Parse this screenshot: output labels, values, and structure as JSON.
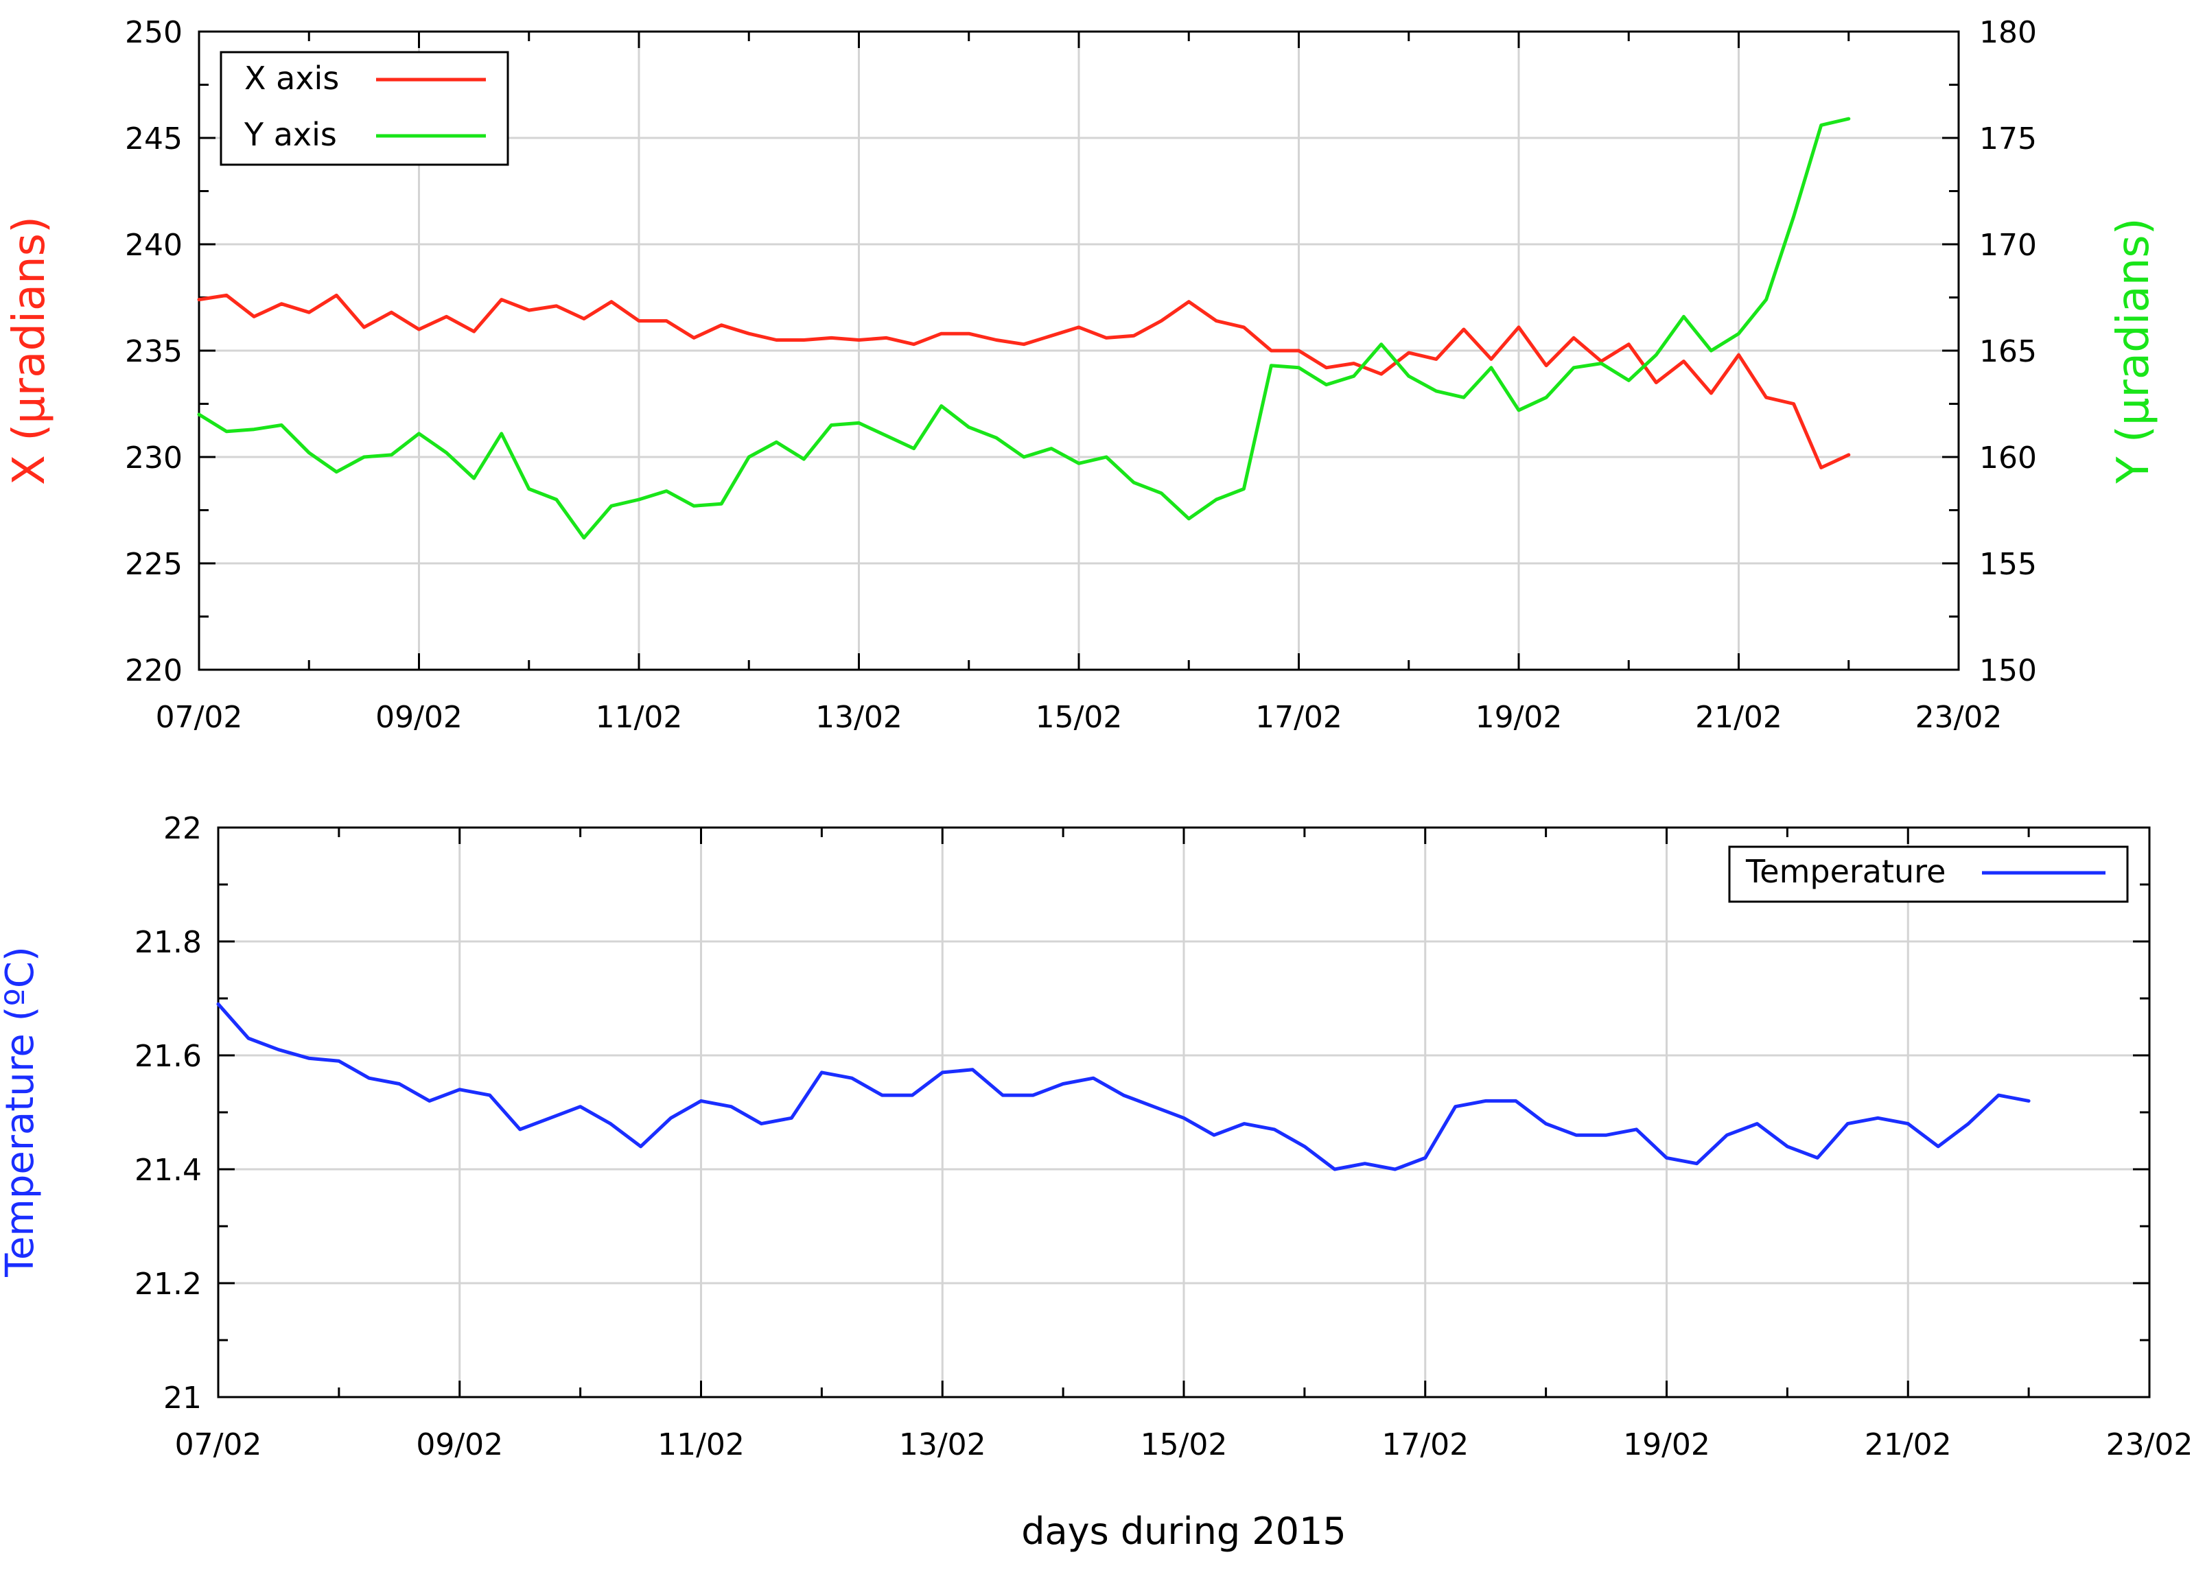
{
  "chart_data": [
    {
      "type": "line",
      "title": "",
      "xlabel": "",
      "ylabel": "X (µradians)",
      "y2label": "Y (µradians)",
      "xticks": [
        "07/02",
        "09/02",
        "11/02",
        "13/02",
        "15/02",
        "17/02",
        "19/02",
        "21/02",
        "23/02"
      ],
      "xlim": [
        "2015-02-07",
        "2015-02-23"
      ],
      "ylim": [
        220,
        250
      ],
      "yticks": [
        "220",
        "225",
        "230",
        "235",
        "240",
        "245",
        "250"
      ],
      "y2lim": [
        150,
        180
      ],
      "y2ticks": [
        "150",
        "155",
        "160",
        "165",
        "170",
        "175",
        "180"
      ],
      "grid": true,
      "legend": "top-left",
      "series": [
        {
          "name": "X axis",
          "axis": "left",
          "color": "#ff2a1a",
          "x": [
            "2015-02-07T00:00",
            "2015-02-07T06:00",
            "2015-02-07T12:00",
            "2015-02-07T18:00",
            "2015-02-08T00:00",
            "2015-02-08T06:00",
            "2015-02-08T12:00",
            "2015-02-08T18:00",
            "2015-02-09T00:00",
            "2015-02-09T06:00",
            "2015-02-09T12:00",
            "2015-02-09T18:00",
            "2015-02-10T00:00",
            "2015-02-10T06:00",
            "2015-02-10T12:00",
            "2015-02-10T18:00",
            "2015-02-11T00:00",
            "2015-02-11T06:00",
            "2015-02-11T12:00",
            "2015-02-11T18:00",
            "2015-02-12T00:00",
            "2015-02-12T06:00",
            "2015-02-12T12:00",
            "2015-02-12T18:00",
            "2015-02-13T00:00",
            "2015-02-13T06:00",
            "2015-02-13T12:00",
            "2015-02-13T18:00",
            "2015-02-14T00:00",
            "2015-02-14T06:00",
            "2015-02-14T12:00",
            "2015-02-14T18:00",
            "2015-02-15T00:00",
            "2015-02-15T06:00",
            "2015-02-15T12:00",
            "2015-02-15T18:00",
            "2015-02-16T00:00",
            "2015-02-16T06:00",
            "2015-02-16T12:00",
            "2015-02-16T18:00",
            "2015-02-17T00:00",
            "2015-02-17T06:00",
            "2015-02-17T12:00",
            "2015-02-17T18:00",
            "2015-02-18T00:00",
            "2015-02-18T06:00",
            "2015-02-18T12:00",
            "2015-02-18T18:00",
            "2015-02-19T00:00",
            "2015-02-19T06:00",
            "2015-02-19T12:00",
            "2015-02-19T18:00",
            "2015-02-20T00:00",
            "2015-02-20T06:00",
            "2015-02-20T12:00",
            "2015-02-20T18:00",
            "2015-02-21T00:00",
            "2015-02-21T06:00",
            "2015-02-21T12:00",
            "2015-02-21T18:00",
            "2015-02-22T00:00"
          ],
          "values": [
            237.4,
            237.6,
            236.6,
            237.2,
            236.8,
            237.6,
            236.1,
            236.8,
            236.0,
            236.6,
            235.9,
            237.4,
            236.9,
            237.1,
            236.5,
            237.3,
            236.4,
            236.4,
            235.6,
            236.2,
            235.8,
            235.5,
            235.5,
            235.6,
            235.5,
            235.6,
            235.3,
            235.8,
            235.8,
            235.5,
            235.3,
            235.7,
            236.1,
            235.6,
            235.7,
            236.4,
            237.3,
            236.4,
            236.1,
            235.0,
            235.0,
            234.2,
            234.4,
            233.9,
            234.9,
            234.6,
            236.0,
            234.6,
            236.1,
            234.3,
            235.6,
            234.5,
            235.3,
            233.5,
            234.5,
            233.0,
            234.8,
            232.8,
            232.5,
            229.5,
            230.1
          ]
        },
        {
          "name": "Y axis",
          "axis": "right",
          "color": "#19e519",
          "x": [
            "2015-02-07T00:00",
            "2015-02-07T06:00",
            "2015-02-07T12:00",
            "2015-02-07T18:00",
            "2015-02-08T00:00",
            "2015-02-08T06:00",
            "2015-02-08T12:00",
            "2015-02-08T18:00",
            "2015-02-09T00:00",
            "2015-02-09T06:00",
            "2015-02-09T12:00",
            "2015-02-09T18:00",
            "2015-02-10T00:00",
            "2015-02-10T06:00",
            "2015-02-10T12:00",
            "2015-02-10T18:00",
            "2015-02-11T00:00",
            "2015-02-11T06:00",
            "2015-02-11T12:00",
            "2015-02-11T18:00",
            "2015-02-12T00:00",
            "2015-02-12T06:00",
            "2015-02-12T12:00",
            "2015-02-12T18:00",
            "2015-02-13T00:00",
            "2015-02-13T06:00",
            "2015-02-13T12:00",
            "2015-02-13T18:00",
            "2015-02-14T00:00",
            "2015-02-14T06:00",
            "2015-02-14T12:00",
            "2015-02-14T18:00",
            "2015-02-15T00:00",
            "2015-02-15T06:00",
            "2015-02-15T12:00",
            "2015-02-15T18:00",
            "2015-02-16T00:00",
            "2015-02-16T06:00",
            "2015-02-16T12:00",
            "2015-02-16T18:00",
            "2015-02-17T00:00",
            "2015-02-17T06:00",
            "2015-02-17T12:00",
            "2015-02-17T18:00",
            "2015-02-18T00:00",
            "2015-02-18T06:00",
            "2015-02-18T12:00",
            "2015-02-18T18:00",
            "2015-02-19T00:00",
            "2015-02-19T06:00",
            "2015-02-19T12:00",
            "2015-02-19T18:00",
            "2015-02-20T00:00",
            "2015-02-20T06:00",
            "2015-02-20T12:00",
            "2015-02-20T18:00",
            "2015-02-21T00:00",
            "2015-02-21T06:00",
            "2015-02-21T12:00",
            "2015-02-21T18:00",
            "2015-02-22T00:00"
          ],
          "values": [
            162.0,
            161.2,
            161.3,
            161.5,
            160.2,
            159.3,
            160.0,
            160.1,
            161.1,
            160.2,
            159.0,
            161.1,
            158.5,
            158.0,
            156.2,
            157.7,
            158.0,
            158.4,
            157.7,
            157.8,
            160.0,
            160.7,
            159.9,
            161.5,
            161.6,
            161.0,
            160.4,
            162.4,
            161.4,
            160.9,
            160.0,
            160.4,
            159.7,
            160.0,
            158.8,
            158.3,
            157.1,
            158.0,
            158.5,
            164.3,
            164.2,
            163.4,
            163.8,
            165.3,
            163.8,
            163.1,
            162.8,
            164.2,
            162.2,
            162.8,
            164.2,
            164.4,
            163.6,
            164.8,
            166.6,
            165.0,
            165.8,
            167.4,
            171.3,
            175.6,
            175.9
          ]
        }
      ]
    },
    {
      "type": "line",
      "title": "",
      "xlabel": "days during 2015",
      "ylabel": "Temperature (ºC)",
      "xticks": [
        "07/02",
        "09/02",
        "11/02",
        "13/02",
        "15/02",
        "17/02",
        "19/02",
        "21/02",
        "23/02"
      ],
      "xlim": [
        "2015-02-07",
        "2015-02-23"
      ],
      "ylim": [
        21,
        22
      ],
      "yticks": [
        "21",
        "21.2",
        "21.4",
        "21.6",
        "21.8",
        "22"
      ],
      "grid": true,
      "legend": "top-right",
      "series": [
        {
          "name": "Temperature",
          "color": "#1a2eff",
          "x": [
            "2015-02-07T00:00",
            "2015-02-07T06:00",
            "2015-02-07T12:00",
            "2015-02-07T18:00",
            "2015-02-08T00:00",
            "2015-02-08T06:00",
            "2015-02-08T12:00",
            "2015-02-08T18:00",
            "2015-02-09T00:00",
            "2015-02-09T06:00",
            "2015-02-09T12:00",
            "2015-02-09T18:00",
            "2015-02-10T00:00",
            "2015-02-10T06:00",
            "2015-02-10T12:00",
            "2015-02-10T18:00",
            "2015-02-11T00:00",
            "2015-02-11T06:00",
            "2015-02-11T12:00",
            "2015-02-11T18:00",
            "2015-02-12T00:00",
            "2015-02-12T06:00",
            "2015-02-12T12:00",
            "2015-02-12T18:00",
            "2015-02-13T00:00",
            "2015-02-13T06:00",
            "2015-02-13T12:00",
            "2015-02-13T18:00",
            "2015-02-14T00:00",
            "2015-02-14T06:00",
            "2015-02-14T12:00",
            "2015-02-14T18:00",
            "2015-02-15T00:00",
            "2015-02-15T06:00",
            "2015-02-15T12:00",
            "2015-02-15T18:00",
            "2015-02-16T00:00",
            "2015-02-16T06:00",
            "2015-02-16T12:00",
            "2015-02-16T18:00",
            "2015-02-17T00:00",
            "2015-02-17T06:00",
            "2015-02-17T12:00",
            "2015-02-17T18:00",
            "2015-02-18T00:00",
            "2015-02-18T06:00",
            "2015-02-18T12:00",
            "2015-02-18T18:00",
            "2015-02-19T00:00",
            "2015-02-19T06:00",
            "2015-02-19T12:00",
            "2015-02-19T18:00",
            "2015-02-20T00:00",
            "2015-02-20T06:00",
            "2015-02-20T12:00",
            "2015-02-20T18:00",
            "2015-02-21T00:00",
            "2015-02-21T06:00",
            "2015-02-21T12:00",
            "2015-02-21T18:00",
            "2015-02-22T00:00"
          ],
          "values": [
            21.69,
            21.63,
            21.61,
            21.595,
            21.59,
            21.56,
            21.55,
            21.52,
            21.54,
            21.53,
            21.47,
            21.49,
            21.51,
            21.48,
            21.44,
            21.49,
            21.52,
            21.51,
            21.48,
            21.49,
            21.57,
            21.56,
            21.53,
            21.53,
            21.57,
            21.575,
            21.53,
            21.53,
            21.55,
            21.56,
            21.53,
            21.51,
            21.49,
            21.46,
            21.48,
            21.47,
            21.44,
            21.4,
            21.41,
            21.4,
            21.42,
            21.51,
            21.52,
            21.52,
            21.48,
            21.46,
            21.46,
            21.47,
            21.42,
            21.41,
            21.46,
            21.48,
            21.44,
            21.42,
            21.48,
            21.49,
            21.48,
            21.44,
            21.48,
            21.53,
            21.52
          ]
        }
      ]
    }
  ]
}
